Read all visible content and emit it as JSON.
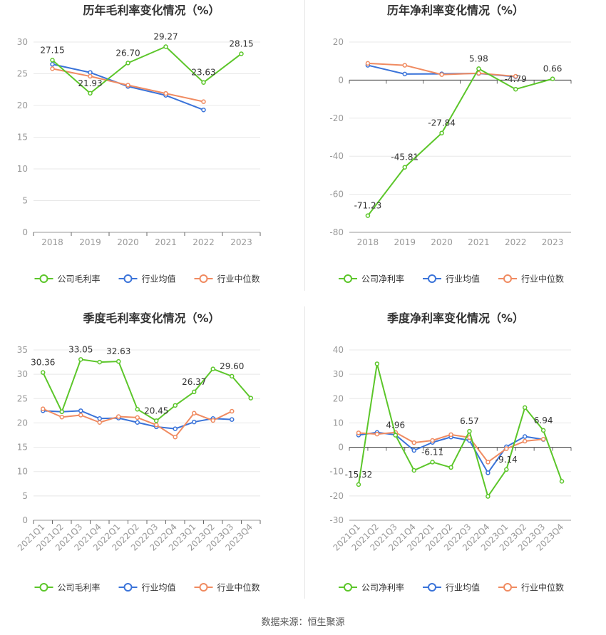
{
  "source_text": "数据来源：恒生聚源",
  "colors": {
    "company": "#5cc62a",
    "avg": "#3a73d9",
    "median": "#f08b61"
  },
  "chart_data": [
    {
      "type": "line",
      "title": "历年毛利率变化情况（%）",
      "categories": [
        "2018",
        "2019",
        "2020",
        "2021",
        "2022",
        "2023"
      ],
      "ylim": [
        0,
        30
      ],
      "yticks": [
        0,
        5,
        10,
        15,
        20,
        25,
        30
      ],
      "grid": true,
      "legend": "bottom",
      "series": [
        {
          "name": "公司毛利率",
          "key": "company",
          "values": [
            27.15,
            21.93,
            26.7,
            29.27,
            23.63,
            28.15
          ],
          "labels": [
            "27.15",
            "21.93",
            "26.70",
            "29.27",
            "23.63",
            "28.15"
          ]
        },
        {
          "name": "行业均值",
          "key": "avg",
          "values": [
            26.5,
            25.2,
            23.0,
            21.6,
            19.3,
            null
          ]
        },
        {
          "name": "行业中位数",
          "key": "median",
          "values": [
            25.8,
            24.6,
            23.2,
            21.9,
            20.6,
            null
          ]
        }
      ]
    },
    {
      "type": "line",
      "title": "历年净利率变化情况（%）",
      "categories": [
        "2018",
        "2019",
        "2020",
        "2021",
        "2022",
        "2023"
      ],
      "ylim": [
        -80,
        20
      ],
      "yticks": [
        -80,
        -60,
        -40,
        -20,
        0,
        20
      ],
      "grid": true,
      "legend": "bottom",
      "series": [
        {
          "name": "公司净利率",
          "key": "company",
          "values": [
            -71.23,
            -45.81,
            -27.84,
            5.98,
            -4.79,
            0.66
          ],
          "labels": [
            "-71.23",
            "-45.81",
            "-27.84",
            "5.98",
            "-4.79",
            "0.66"
          ]
        },
        {
          "name": "行业均值",
          "key": "avg",
          "values": [
            7.8,
            3.2,
            3.3,
            3.5,
            1.8,
            null
          ]
        },
        {
          "name": "行业中位数",
          "key": "median",
          "values": [
            8.8,
            7.8,
            2.9,
            3.6,
            2.0,
            null
          ]
        }
      ]
    },
    {
      "type": "line",
      "title": "季度毛利率变化情况（%）",
      "categories": [
        "2021Q1",
        "2021Q2",
        "2021Q3",
        "2021Q4",
        "2022Q1",
        "2022Q2",
        "2022Q3",
        "2022Q4",
        "2023Q1",
        "2023Q2",
        "2023Q3",
        "2023Q4"
      ],
      "ylim": [
        0,
        35
      ],
      "yticks": [
        0,
        5,
        10,
        15,
        20,
        25,
        30,
        35
      ],
      "grid": true,
      "legend": "bottom",
      "series": [
        {
          "name": "公司毛利率",
          "key": "company",
          "values": [
            30.36,
            22.3,
            33.05,
            32.5,
            32.63,
            22.8,
            20.45,
            23.6,
            26.37,
            31.1,
            29.6,
            25.1
          ],
          "labels": [
            "30.36",
            "",
            "33.05",
            "",
            "32.63",
            "",
            "20.45",
            "",
            "26.37",
            "",
            "29.60",
            ""
          ]
        },
        {
          "name": "行业均值",
          "key": "avg",
          "values": [
            22.5,
            22.3,
            22.5,
            20.9,
            21.0,
            20.1,
            19.2,
            18.8,
            20.2,
            20.9,
            20.7,
            null
          ]
        },
        {
          "name": "行业中位数",
          "key": "median",
          "values": [
            22.9,
            21.2,
            21.6,
            20.1,
            21.3,
            21.1,
            19.6,
            17.1,
            22.0,
            20.5,
            22.4,
            null
          ]
        }
      ]
    },
    {
      "type": "line",
      "title": "季度净利率变化情况（%）",
      "categories": [
        "2021Q1",
        "2021Q2",
        "2021Q3",
        "2021Q4",
        "2022Q1",
        "2022Q2",
        "2022Q3",
        "2022Q4",
        "2023Q1",
        "2023Q2",
        "2023Q3",
        "2023Q4"
      ],
      "ylim": [
        -30,
        40
      ],
      "yticks": [
        -30,
        -20,
        -10,
        0,
        10,
        20,
        30,
        40
      ],
      "grid": true,
      "legend": "bottom",
      "series": [
        {
          "name": "公司净利率",
          "key": "company",
          "values": [
            -15.32,
            34.3,
            4.96,
            -9.5,
            -6.11,
            -8.3,
            6.57,
            -20.2,
            -9.14,
            16.3,
            6.94,
            -14.0
          ],
          "labels": [
            "-15.32",
            "",
            "4.96",
            "",
            "-6.11",
            "",
            "6.57",
            "",
            "-9.14",
            "",
            "6.94",
            ""
          ]
        },
        {
          "name": "行业均值",
          "key": "avg",
          "values": [
            5.0,
            6.1,
            5.1,
            -1.3,
            2.0,
            4.2,
            2.8,
            -10.5,
            0.2,
            4.4,
            3.2,
            null
          ]
        },
        {
          "name": "行业中位数",
          "key": "median",
          "values": [
            5.9,
            5.4,
            6.1,
            1.9,
            2.8,
            5.2,
            4.0,
            -6.1,
            -0.6,
            2.5,
            3.3,
            null
          ]
        }
      ]
    }
  ]
}
